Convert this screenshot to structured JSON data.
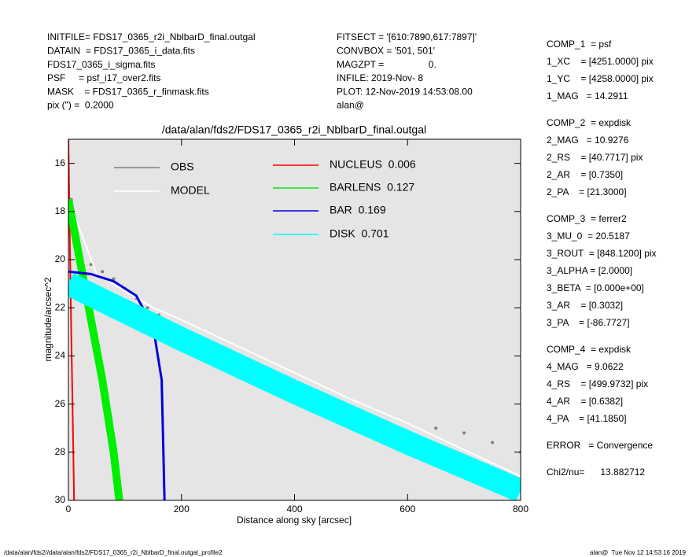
{
  "header": {
    "left": [
      "INITFILE= FDS17_0365_r2i_NblbarD_final.outgal",
      "DATAIN  = FDS17_0365_i_data.fits",
      "FDS17_0365_i_sigma.fits",
      "PSF     = psf_i17_over2.fits",
      "MASK    = FDS17_0365_r_finmask.fits",
      "pix (\") =  0.2000"
    ],
    "middle": [
      "FITSECT = '[610:7890,617:7897]'",
      "CONVBOX = '501, 501'",
      "MAGZPT =                 0.",
      "INFILE: 2019-Nov- 8",
      "PLOT: 12-Nov-2019 14:53:08.00",
      "alan@"
    ]
  },
  "params": [
    [
      "COMP_1  = psf",
      "1_XC    = [4251.0000] pix",
      "1_YC    = [4258.0000] pix",
      "1_MAG   = 14.2911"
    ],
    [
      "COMP_2  = expdisk",
      "2_MAG   = 10.9276",
      "2_RS    = [40.7717] pix",
      "2_AR    = [0.7350]",
      "2_PA    = [21.3000]"
    ],
    [
      "COMP_3  = ferrer2",
      "3_MU_0  = 20.5187",
      "3_ROUT  = [848.1200] pix",
      "3_ALPHA = [2.0000]",
      "3_BETA  = [0.000e+00]",
      "3_AR    = [0.3032]",
      "3_PA    = [-86.7727]"
    ],
    [
      "COMP_4  = expdisk",
      "4_MAG   = 9.0622",
      "4_RS    = [499.9732] pix",
      "4_AR    = [0.6382]",
      "4_PA    = [41.1850]"
    ],
    [
      "ERROR   = Convergence"
    ],
    [
      "Chi2/nu=      13.882712"
    ]
  ],
  "footer": {
    "left": "/data/alan/fds2//data/alan/fds2/FDS17_0365_r2i_NblbarD_final.outgal_profile2",
    "right": "alan@  Tue Nov 12 14:53:16 2019"
  },
  "chart_data": {
    "type": "line",
    "title": "/data/alan/fds2/FDS17_0365_r2i_NblbarD_final.outgal",
    "x_label": "Distance along sky [arcsec]",
    "y_label": "magnitude/arcsec^2",
    "xlim": [
      0,
      800
    ],
    "xticks": [
      0,
      200,
      400,
      600,
      800
    ],
    "ylim": [
      30,
      15
    ],
    "yticks": [
      16,
      18,
      20,
      22,
      24,
      26,
      28,
      30
    ],
    "y_inverted": true,
    "series": [
      {
        "name": "OBS",
        "color": "#7f7f7f",
        "marker": "dots",
        "x": [
          5,
          20,
          40,
          60,
          80,
          100,
          120,
          140,
          160,
          180,
          200,
          250,
          300,
          340,
          360,
          400,
          450,
          500,
          550,
          600,
          650,
          700,
          750,
          800
        ],
        "values": [
          17.5,
          19.5,
          20.2,
          20.5,
          20.8,
          21.2,
          21.6,
          22.0,
          22.3,
          22.6,
          22.9,
          23.6,
          24.2,
          24.6,
          25.0,
          25.6,
          26.2,
          26.7,
          27.1,
          27.4,
          27.0,
          27.2,
          27.6,
          28.0
        ]
      },
      {
        "name": "MODEL",
        "color": "#ffffff",
        "x": [
          0,
          50,
          100,
          150,
          200,
          300,
          400,
          500,
          600,
          700,
          800
        ],
        "values": [
          17.5,
          20.6,
          21.3,
          22.0,
          22.5,
          23.6,
          24.7,
          25.8,
          26.8,
          27.9,
          29.0
        ]
      },
      {
        "name": "NUCLEUS  0.006",
        "color": "#ff0000",
        "x": [
          0,
          3,
          5,
          8,
          10
        ],
        "values": [
          15,
          20,
          23,
          27,
          30
        ]
      },
      {
        "name": "BARLENS  0.127",
        "color": "#00ee00",
        "x": [
          0,
          20,
          40,
          60,
          80,
          90
        ],
        "values": [
          17.5,
          20,
          22.5,
          25,
          28,
          30
        ]
      },
      {
        "name": "BAR  0.169",
        "color": "#0000dd",
        "x": [
          0,
          40,
          80,
          120,
          150,
          165,
          170
        ],
        "values": [
          20.5,
          20.6,
          20.9,
          21.5,
          22.8,
          25,
          30
        ]
      },
      {
        "name": "DISK  0.701",
        "color": "#00ffff",
        "x": [
          0,
          200,
          400,
          600,
          800
        ],
        "values": [
          21.0,
          23.3,
          25.5,
          27.6,
          29.6
        ]
      }
    ]
  }
}
